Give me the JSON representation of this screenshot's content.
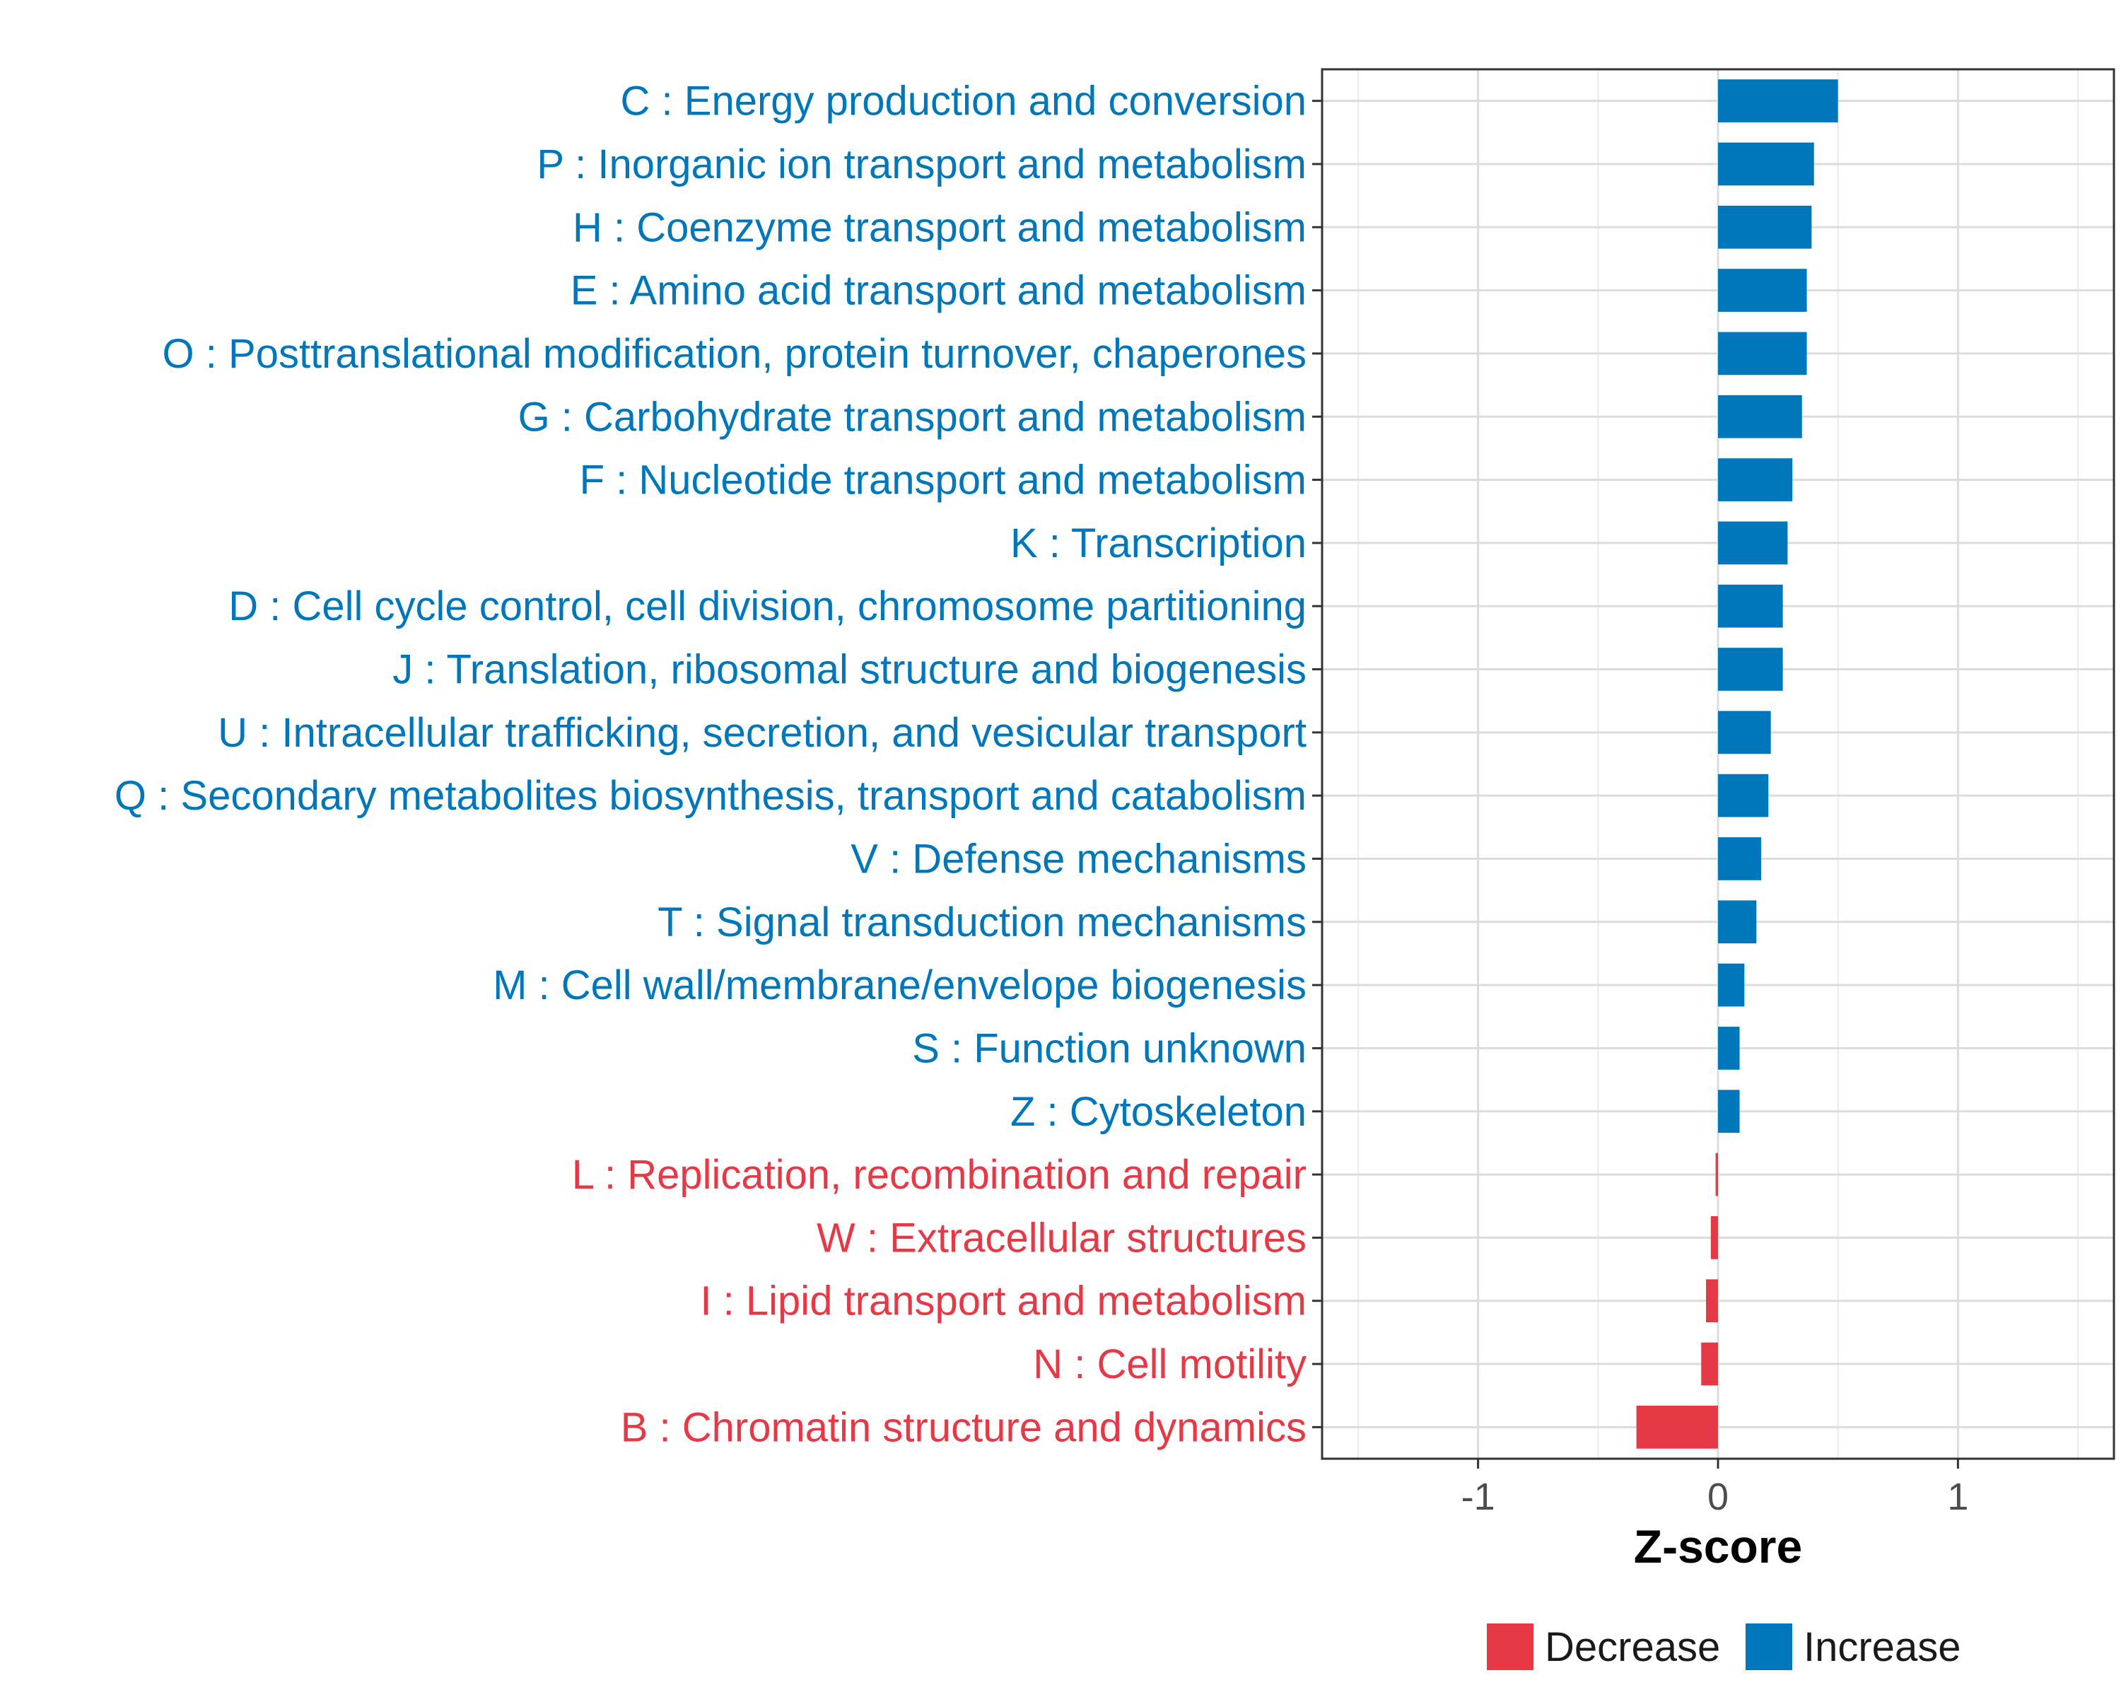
{
  "chart_data": {
    "type": "bar",
    "orientation": "horizontal",
    "xlabel": "Z-score",
    "xlim": [
      -1.65,
      1.65
    ],
    "xticks": [
      -1,
      0,
      1
    ],
    "xtick_labels": [
      "-1",
      "0",
      "1"
    ],
    "grid": true,
    "legend_position": "bottom",
    "categories": [
      "C : Energy production and conversion",
      "P : Inorganic ion transport and metabolism",
      "H : Coenzyme transport and metabolism",
      "E : Amino acid transport and metabolism",
      "O : Posttranslational modification, protein turnover, chaperones",
      "G : Carbohydrate transport and metabolism",
      "F : Nucleotide transport and metabolism",
      "K : Transcription",
      "D : Cell cycle control, cell division, chromosome partitioning",
      "J : Translation, ribosomal structure and biogenesis",
      "U : Intracellular trafficking, secretion, and vesicular transport",
      "Q : Secondary metabolites biosynthesis, transport and catabolism",
      "V : Defense mechanisms",
      "T : Signal transduction mechanisms",
      "M : Cell wall/membrane/envelope biogenesis",
      "S : Function unknown",
      "Z : Cytoskeleton",
      "L : Replication, recombination and repair",
      "W : Extracellular structures",
      "I : Lipid transport and metabolism",
      "N : Cell motility",
      "B : Chromatin structure and dynamics"
    ],
    "values": [
      0.5,
      0.4,
      0.39,
      0.37,
      0.37,
      0.35,
      0.31,
      0.29,
      0.27,
      0.27,
      0.22,
      0.21,
      0.18,
      0.16,
      0.11,
      0.09,
      0.09,
      -0.01,
      -0.03,
      -0.05,
      -0.07,
      -0.34
    ],
    "groups": [
      "Increase",
      "Increase",
      "Increase",
      "Increase",
      "Increase",
      "Increase",
      "Increase",
      "Increase",
      "Increase",
      "Increase",
      "Increase",
      "Increase",
      "Increase",
      "Increase",
      "Increase",
      "Increase",
      "Increase",
      "Decrease",
      "Decrease",
      "Decrease",
      "Decrease",
      "Decrease"
    ],
    "legend": [
      {
        "name": "Decrease",
        "color": "#E63946"
      },
      {
        "name": "Increase",
        "color": "#0077BB"
      }
    ],
    "colors": {
      "Decrease": "#E63946",
      "Increase": "#0077BB"
    }
  }
}
